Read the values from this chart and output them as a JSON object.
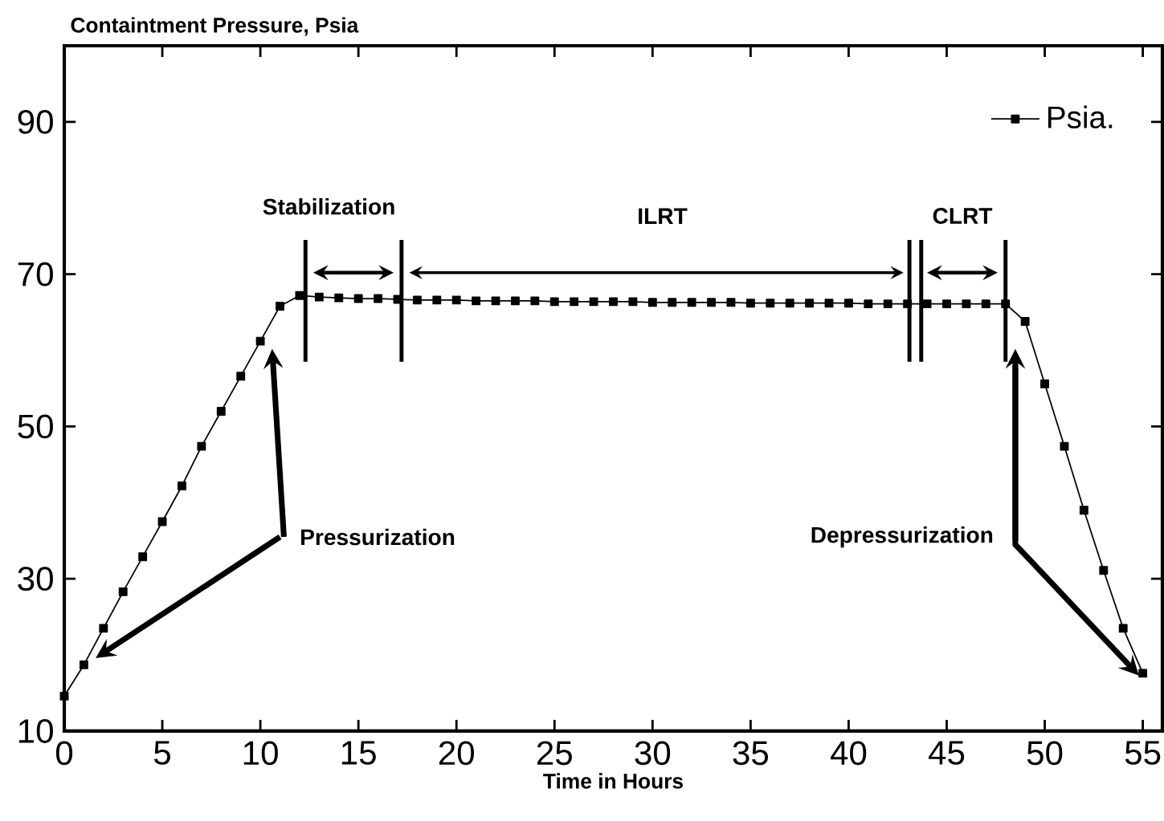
{
  "chart_data": {
    "type": "line",
    "ylabel": "Containtment Pressure, Psia",
    "xlabel": "Time in Hours",
    "x": [
      0,
      1,
      2,
      3,
      4,
      5,
      6,
      7,
      8,
      9,
      10,
      11,
      12,
      13,
      14,
      15,
      16,
      17,
      18,
      19,
      20,
      21,
      22,
      23,
      24,
      25,
      26,
      27,
      28,
      29,
      30,
      31,
      32,
      33,
      34,
      35,
      36,
      37,
      38,
      39,
      40,
      41,
      42,
      43,
      44,
      45,
      46,
      47,
      48,
      49,
      50,
      51,
      52,
      53,
      54,
      55
    ],
    "series": [
      {
        "name": "Psia.",
        "color": "#000000",
        "values": [
          14.6,
          18.7,
          23.5,
          28.3,
          32.9,
          37.5,
          42.2,
          47.4,
          52.0,
          56.6,
          61.2,
          65.8,
          67.2,
          67.0,
          66.9,
          66.8,
          66.8,
          66.7,
          66.6,
          66.6,
          66.6,
          66.5,
          66.5,
          66.5,
          66.5,
          66.4,
          66.4,
          66.4,
          66.4,
          66.4,
          66.3,
          66.3,
          66.3,
          66.3,
          66.3,
          66.2,
          66.2,
          66.2,
          66.2,
          66.2,
          66.2,
          66.1,
          66.1,
          66.1,
          66.1,
          66.1,
          66.1,
          66.1,
          66.1,
          63.8,
          55.6,
          47.4,
          39.0,
          31.1,
          23.5,
          17.6
        ]
      }
    ],
    "xlim": [
      0,
      56
    ],
    "ylim": [
      10,
      100
    ],
    "xticks": [
      0,
      5,
      10,
      15,
      20,
      25,
      30,
      35,
      40,
      45,
      50,
      55
    ],
    "yticks": [
      10,
      30,
      50,
      70,
      90
    ],
    "ref_lines": [
      {
        "axis": "x",
        "value": 12.3
      },
      {
        "axis": "x",
        "value": 17.2
      },
      {
        "axis": "x",
        "value": 43.1
      },
      {
        "axis": "x",
        "value": 43.7
      },
      {
        "axis": "x",
        "value": 48.0
      }
    ],
    "annotations": [
      "Stabilization",
      "ILRT",
      "CLRT",
      "Pressurization",
      "Depressurization"
    ],
    "legend": "top right",
    "marker": "square",
    "line_style": "solid",
    "grid": false
  }
}
